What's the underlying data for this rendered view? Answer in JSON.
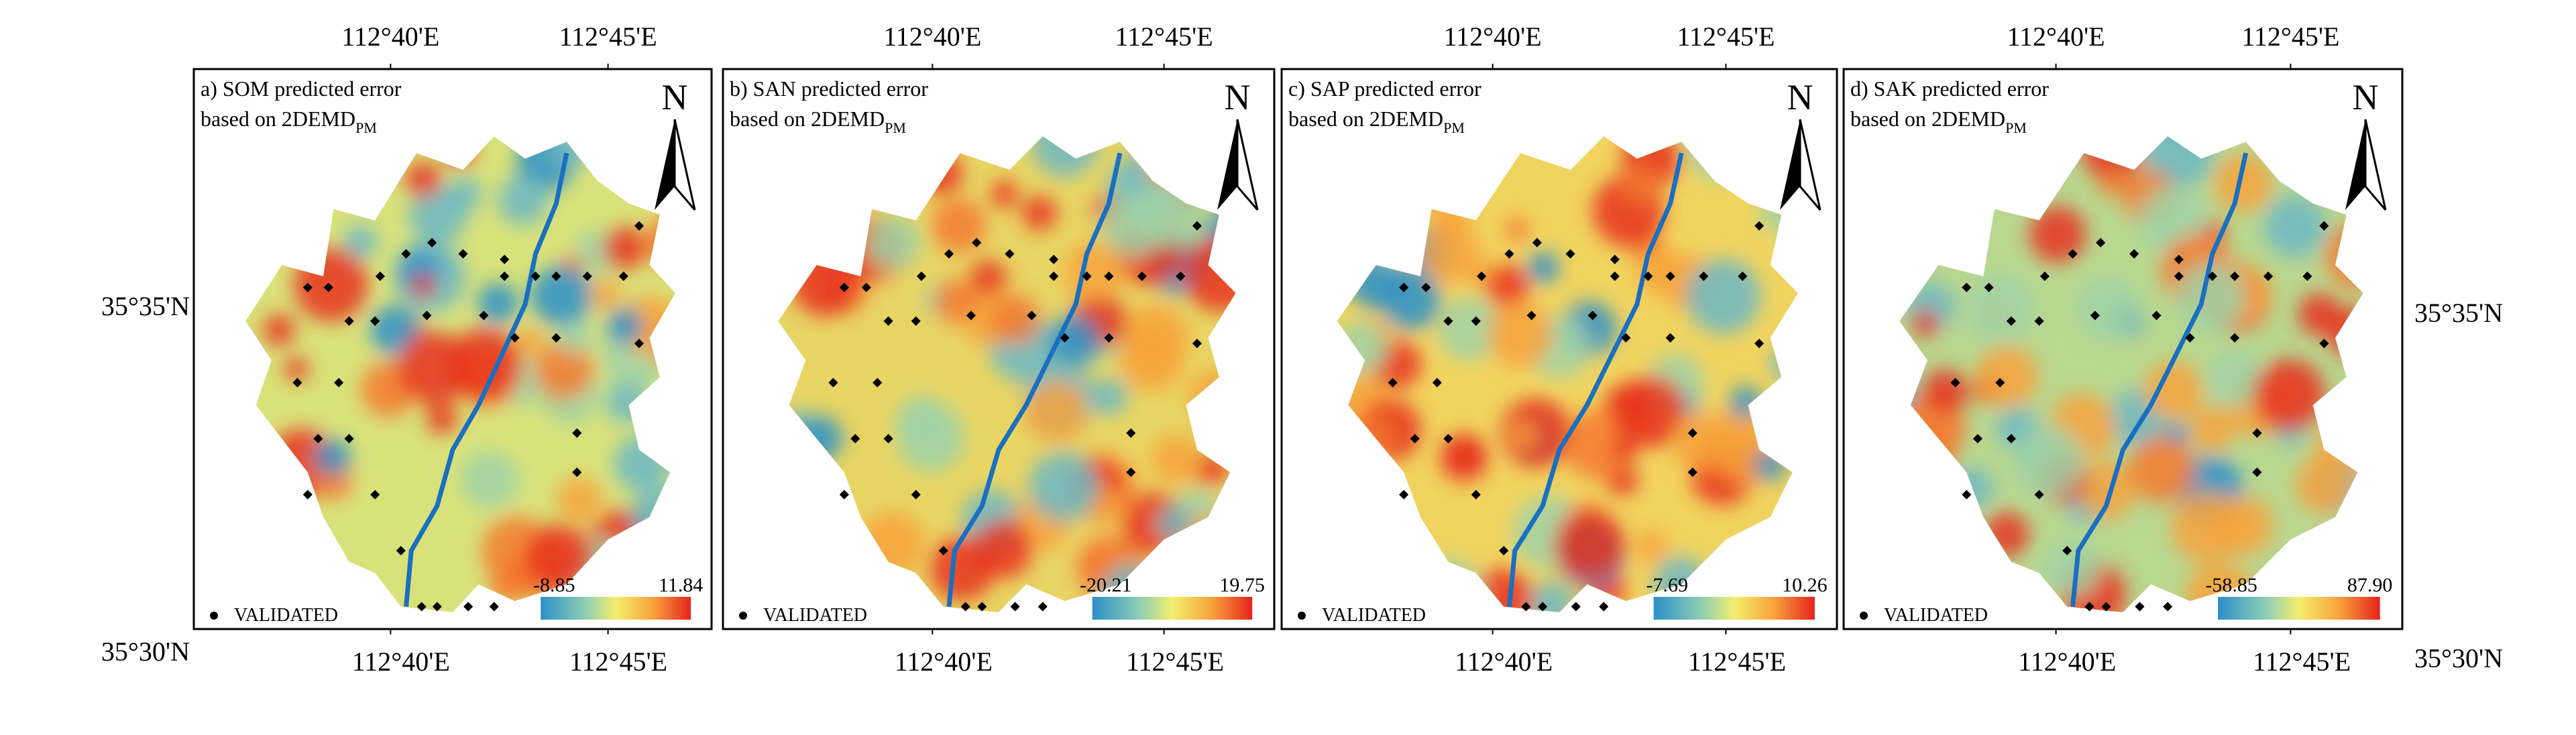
{
  "north": "N",
  "left_labels": [
    "35°35'N",
    "35°30'N"
  ],
  "right_labels": [
    "35°35'N",
    "35°30'N"
  ],
  "panels": [
    {
      "title": "a) SOM predicted error",
      "subtitle": "based on 2DEMD",
      "subscript": "PM",
      "top_ticks": [
        "112°40'E",
        "112°45'E"
      ],
      "bottom_ticks": [
        "112°40'E",
        "112°45'E"
      ],
      "legend": "VALIDATED",
      "colorbar_min": "-8.85",
      "colorbar_max": "11.84"
    },
    {
      "title": "b) SAN predicted error",
      "subtitle": "based on 2DEMD",
      "subscript": "PM",
      "top_ticks": [
        "112°40'E",
        "112°45'E"
      ],
      "bottom_ticks": [
        "112°40'E",
        "112°45'E"
      ],
      "legend": "VALIDATED",
      "colorbar_min": "-20.21",
      "colorbar_max": "19.75"
    },
    {
      "title": "c) SAP predicted error",
      "subtitle": "based on 2DEMD",
      "subscript": "PM",
      "top_ticks": [
        "112°40'E",
        "112°45'E"
      ],
      "bottom_ticks": [
        "112°40'E",
        "112°45'E"
      ],
      "legend": "VALIDATED",
      "colorbar_min": "-7.69",
      "colorbar_max": "10.26"
    },
    {
      "title": "d) SAK predicted error",
      "subtitle": "based on 2DEMD",
      "subscript": "PM",
      "top_ticks": [
        "112°40'E",
        "112°45'E"
      ],
      "bottom_ticks": [
        "112°40'E",
        "112°45'E"
      ],
      "legend": "VALIDATED",
      "colorbar_min": "-58.85",
      "colorbar_max": "87.90"
    }
  ]
}
